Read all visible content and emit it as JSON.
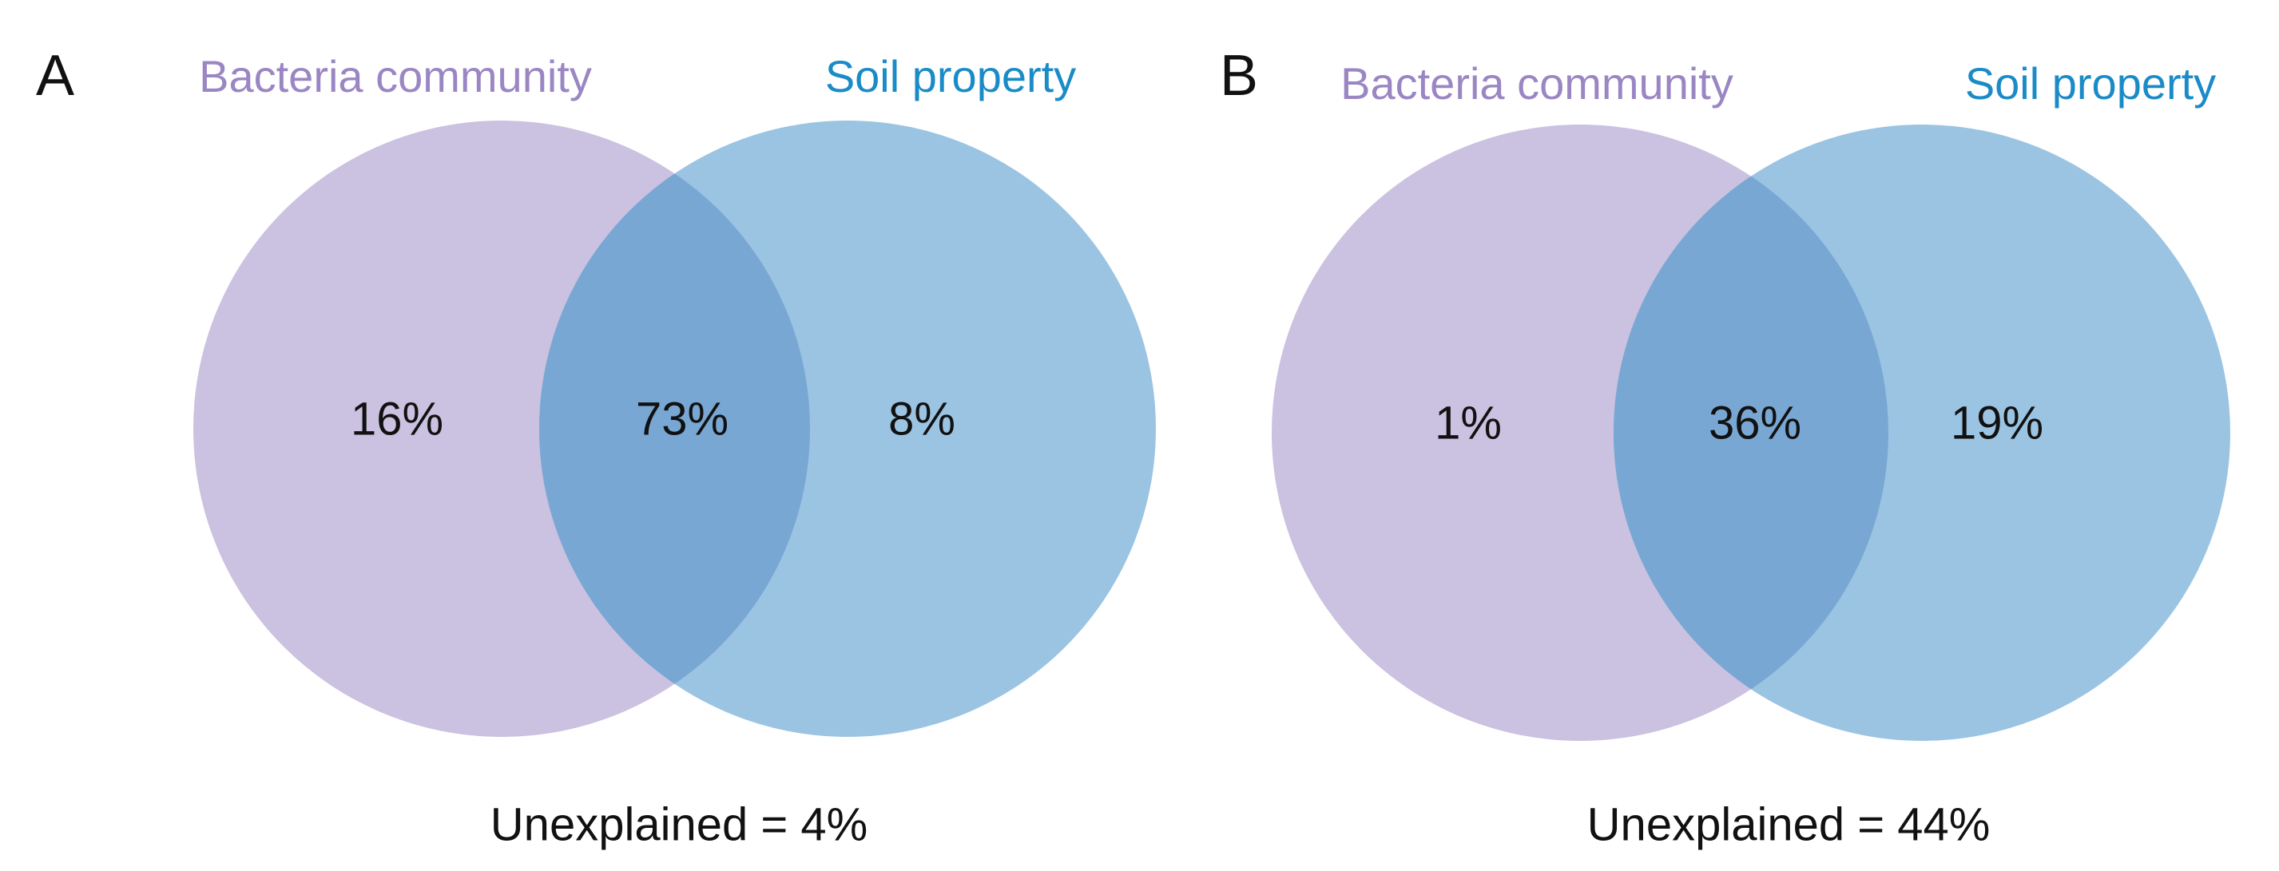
{
  "chart_data": [
    {
      "type": "venn",
      "panel": "A",
      "sets": [
        {
          "name": "Bacteria community",
          "color": "#cbc1e0",
          "label_color": "#9b86c4"
        },
        {
          "name": "Soil property",
          "color": "#9bc4e3",
          "label_color": "#1b8bc7"
        }
      ],
      "overlap_color": "#79a7d3",
      "values": [
        16,
        73,
        8
      ],
      "value_labels": [
        "16%",
        "73%",
        "8%"
      ],
      "annotation": "Unexplained = 4%"
    },
    {
      "type": "venn",
      "panel": "B",
      "sets": [
        {
          "name": "Bacteria community",
          "color": "#cbc1e0",
          "label_color": "#9b86c4"
        },
        {
          "name": "Soil property",
          "color": "#9bc4e3",
          "label_color": "#1b8bc7"
        }
      ],
      "overlap_color": "#79a7d3",
      "values": [
        1,
        36,
        19
      ],
      "value_labels": [
        "1%",
        "36%",
        "19%"
      ],
      "annotation": "Unexplained = 44%"
    }
  ]
}
